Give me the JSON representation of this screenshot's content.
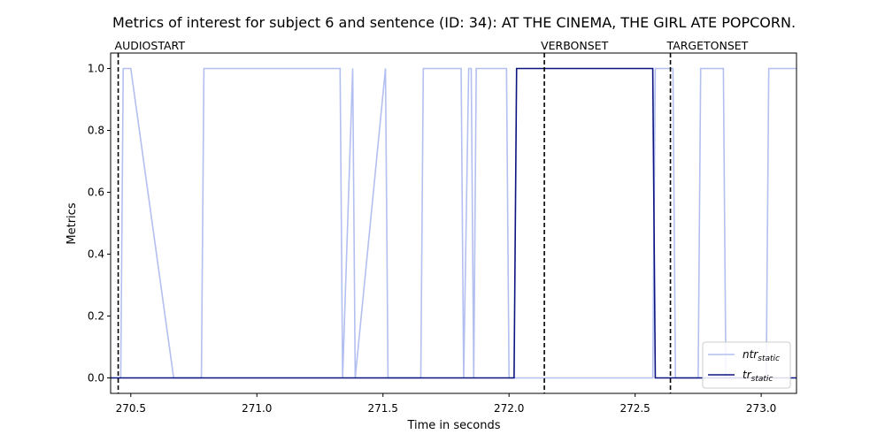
{
  "chart_data": {
    "type": "line",
    "title": "Metrics of interest for subject 6 and sentence (ID: 34): AT THE CINEMA, THE GIRL ATE POPCORN.",
    "xlabel": "Time in seconds",
    "ylabel": "Metrics",
    "xlim": [
      270.42,
      273.14
    ],
    "ylim": [
      -0.05,
      1.05
    ],
    "x_ticks": [
      270.5,
      271.0,
      271.5,
      272.0,
      272.5,
      273.0
    ],
    "x_tick_labels": [
      "270.5",
      "271.0",
      "271.5",
      "272.0",
      "272.5",
      "273.0"
    ],
    "y_ticks": [
      0.0,
      0.2,
      0.4,
      0.6,
      0.8,
      1.0
    ],
    "y_tick_labels": [
      "0.0",
      "0.2",
      "0.4",
      "0.6",
      "0.8",
      "1.0"
    ],
    "grid": false,
    "legend_position": "bottom-right",
    "events": [
      {
        "label": "AUDIOSTART",
        "x": 270.45
      },
      {
        "label": "VERBONSET",
        "x": 272.14
      },
      {
        "label": "TARGETONSET",
        "x": 272.64
      }
    ],
    "series": [
      {
        "name": "ntr_static",
        "legend_main": "ntr",
        "legend_sub": "static",
        "color": "#b3bff0",
        "x": [
          270.45,
          270.46,
          270.47,
          270.5,
          270.67,
          270.78,
          270.79,
          271.33,
          271.34,
          271.38,
          271.39,
          271.51,
          271.52,
          271.65,
          271.66,
          271.81,
          271.82,
          271.84,
          271.85,
          271.86,
          271.87,
          271.88,
          271.99,
          272.0,
          272.57,
          272.58,
          272.65,
          272.66,
          272.75,
          272.76,
          272.85,
          272.86,
          273.02,
          273.03,
          273.14
        ],
        "y": [
          0,
          0,
          1,
          1,
          0,
          0,
          1,
          1,
          0,
          1,
          0,
          1,
          0,
          0,
          1,
          1,
          0,
          1,
          1,
          0,
          1,
          1,
          1,
          0,
          0,
          1,
          1,
          0,
          0,
          1,
          1,
          0,
          0,
          1,
          1
        ]
      },
      {
        "name": "tr_static",
        "legend_main": "tr",
        "legend_sub": "static",
        "color": "#0b1480",
        "x": [
          270.42,
          272.02,
          272.03,
          272.57,
          272.58,
          273.14
        ],
        "y": [
          0,
          0,
          1,
          1,
          0,
          0
        ]
      }
    ]
  }
}
